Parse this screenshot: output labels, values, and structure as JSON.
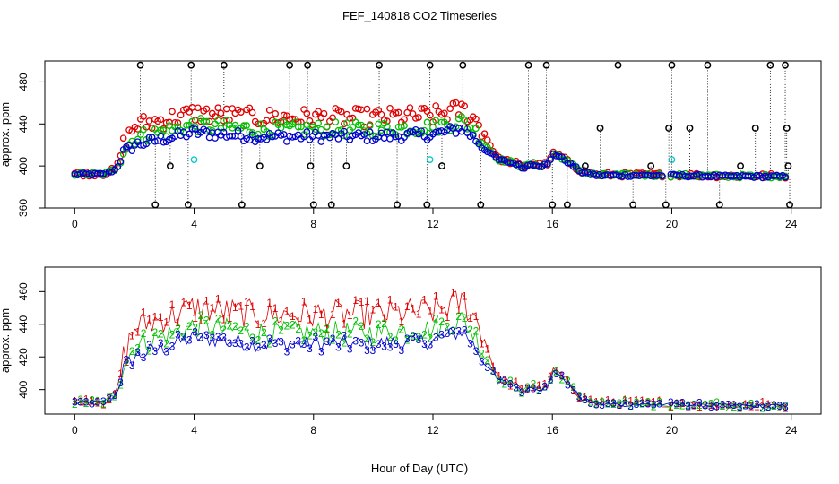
{
  "chart_title": "FEF_140818  CO2 Timeseries",
  "x_axis_label": "Hour of Day (UTC)",
  "colors": {
    "series1": "#e00000",
    "series2": "#00c000",
    "series3": "#0000d0",
    "outlier": "#000000",
    "cyan": "#00c8c8"
  },
  "chart_data": [
    {
      "type": "scatter",
      "name": "top-panel",
      "ylabel": "approx. ppm",
      "xlim": [
        -1,
        25
      ],
      "ylim": [
        360,
        500
      ],
      "x_ticks": [
        0,
        4,
        8,
        12,
        16,
        20,
        24
      ],
      "x_tick_labels": [
        "0",
        "4",
        "8",
        "12",
        "16",
        "20",
        "24"
      ],
      "y_ticks": [
        360,
        400,
        440,
        480
      ],
      "y_tick_labels": [
        "360",
        "400",
        "440",
        "480"
      ],
      "series": [
        {
          "name": "series1",
          "color": "#e00000"
        },
        {
          "name": "series2",
          "color": "#00c000"
        },
        {
          "name": "series3",
          "color": "#0000d0"
        },
        {
          "name": "outliers",
          "color": "#000000",
          "points": [
            [
              2.2,
              496
            ],
            [
              2.7,
              363
            ],
            [
              3.2,
              400
            ],
            [
              3.8,
              363
            ],
            [
              3.9,
              496
            ],
            [
              5.0,
              496
            ],
            [
              5.6,
              363
            ],
            [
              6.2,
              400
            ],
            [
              7.2,
              496
            ],
            [
              7.8,
              496
            ],
            [
              7.9,
              400
            ],
            [
              8.0,
              363
            ],
            [
              8.6,
              363
            ],
            [
              9.1,
              400
            ],
            [
              10.2,
              496
            ],
            [
              10.8,
              363
            ],
            [
              11.8,
              363
            ],
            [
              11.9,
              496
            ],
            [
              12.3,
              400
            ],
            [
              13.0,
              496
            ],
            [
              13.6,
              363
            ],
            [
              15.2,
              496
            ],
            [
              15.8,
              496
            ],
            [
              16.0,
              363
            ],
            [
              16.5,
              363
            ],
            [
              17.1,
              400
            ],
            [
              17.6,
              436
            ],
            [
              18.2,
              496
            ],
            [
              18.7,
              363
            ],
            [
              19.3,
              400
            ],
            [
              19.8,
              363
            ],
            [
              19.9,
              436
            ],
            [
              20.0,
              496
            ],
            [
              20.6,
              436
            ],
            [
              21.2,
              496
            ],
            [
              21.6,
              363
            ],
            [
              22.3,
              400
            ],
            [
              22.8,
              436
            ],
            [
              23.3,
              496
            ],
            [
              23.8,
              496
            ],
            [
              23.85,
              436
            ],
            [
              23.9,
              400
            ],
            [
              23.95,
              363
            ]
          ]
        },
        {
          "name": "cyan",
          "color": "#00c8c8",
          "points": [
            [
              4.0,
              406
            ],
            [
              11.9,
              406
            ],
            [
              20.0,
              406
            ]
          ]
        }
      ]
    },
    {
      "type": "scatter",
      "name": "bottom-panel",
      "ylabel": "approx. ppm",
      "xlim": [
        -1,
        25
      ],
      "ylim": [
        385,
        475
      ],
      "x_ticks": [
        0,
        4,
        8,
        12,
        16,
        20,
        24
      ],
      "x_tick_labels": [
        "0",
        "4",
        "8",
        "12",
        "16",
        "20",
        "24"
      ],
      "y_ticks": [
        400,
        420,
        440,
        460
      ],
      "y_tick_labels": [
        "400",
        "420",
        "440",
        "460"
      ],
      "markers": {
        "series1": "1",
        "series2": "2",
        "series3": "3"
      },
      "series": [
        {
          "name": "series1",
          "color": "#e00000"
        },
        {
          "name": "series2",
          "color": "#00c000"
        },
        {
          "name": "series3",
          "color": "#0000d0"
        }
      ]
    }
  ]
}
